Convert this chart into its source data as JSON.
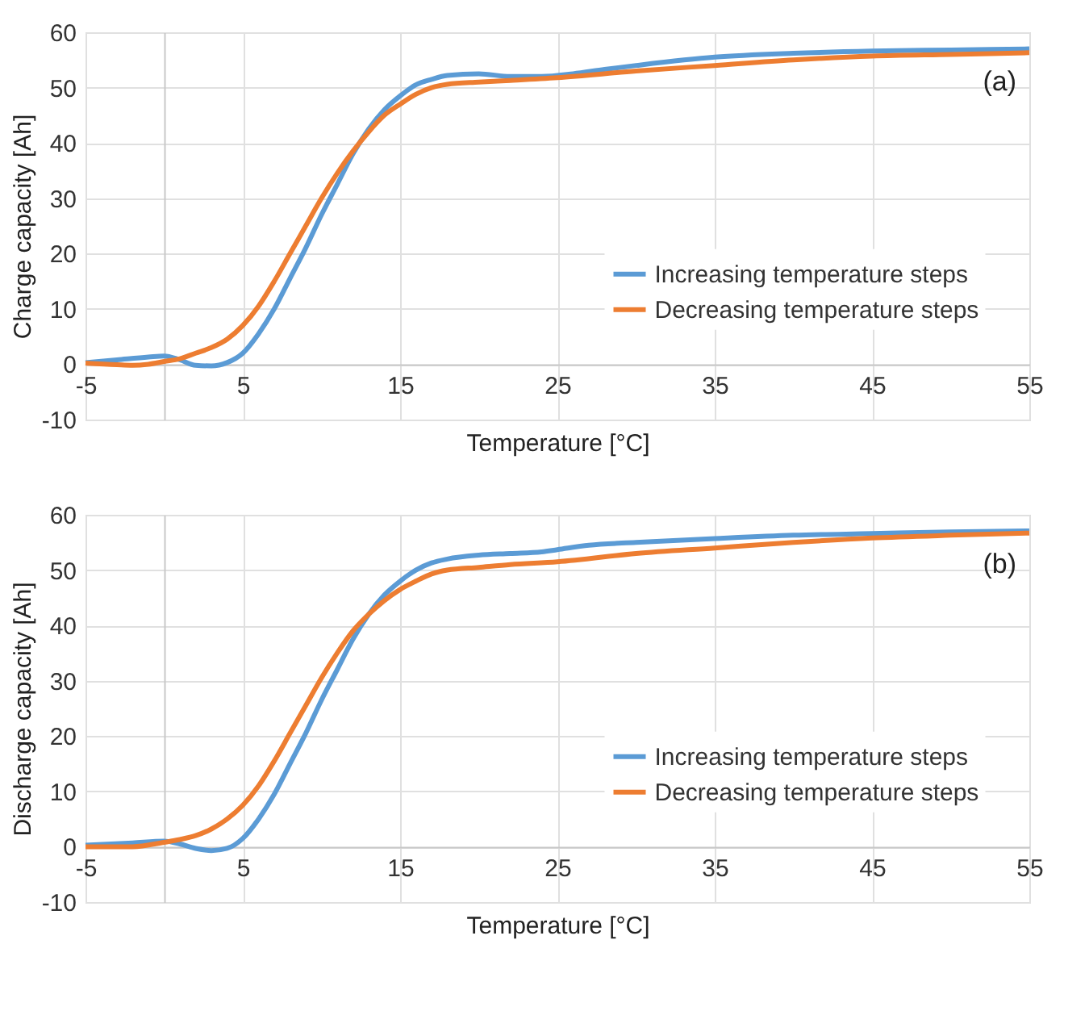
{
  "chart_data": [
    {
      "type": "line",
      "xlabel": "Temperature [°C]",
      "ylabel": "Charge capacity [Ah]",
      "annotations": [
        "(a)"
      ],
      "xlim": [
        -5,
        55
      ],
      "ylim": [
        -10,
        60
      ],
      "xticks": [
        -5,
        5,
        15,
        25,
        35,
        45,
        55
      ],
      "yticks": [
        -10,
        0,
        10,
        20,
        30,
        40,
        50,
        60
      ],
      "grid": true,
      "legend": "bottom right",
      "line_style": "solid",
      "marker": "none",
      "series": [
        {
          "name": "Increasing temperature steps",
          "color": "#5b9bd5",
          "x": [
            -5,
            -3,
            -1,
            0,
            1,
            2,
            3,
            4,
            5,
            6,
            7,
            8,
            9,
            10,
            11,
            12,
            13,
            14,
            15,
            16,
            17,
            18,
            20,
            22,
            24,
            26,
            28,
            30,
            35,
            40,
            45,
            50,
            55
          ],
          "values": [
            0.3,
            0.8,
            1.3,
            1.5,
            0.8,
            -0.2,
            -0.3,
            0.3,
            2,
            5.5,
            10,
            15.5,
            21,
            27,
            32.5,
            38,
            42.5,
            46,
            48.5,
            50.5,
            51.5,
            52.2,
            52.5,
            52,
            52,
            52.5,
            53.3,
            54,
            55.5,
            56.2,
            56.6,
            56.8,
            57
          ]
        },
        {
          "name": "Decreasing temperature steps",
          "color": "#ed7d31",
          "x": [
            -5,
            -3,
            -2,
            -1,
            0,
            1,
            2,
            3,
            4,
            5,
            6,
            7,
            8,
            9,
            10,
            11,
            12,
            13,
            14,
            15,
            16,
            17,
            18,
            20,
            22,
            25,
            30,
            35,
            40,
            45,
            50,
            55
          ],
          "values": [
            0.2,
            -0.1,
            -0.2,
            0,
            0.5,
            1,
            2,
            3,
            4.5,
            7,
            10.5,
            15,
            20,
            25,
            30,
            34.5,
            38.5,
            42,
            45,
            47,
            48.8,
            50,
            50.6,
            51,
            51.3,
            51.8,
            53,
            54,
            55,
            55.7,
            56,
            56.3
          ]
        }
      ]
    },
    {
      "type": "line",
      "xlabel": "Temperature [°C]",
      "ylabel": "Discharge capacity [Ah]",
      "annotations": [
        "(b)"
      ],
      "xlim": [
        -5,
        55
      ],
      "ylim": [
        -10,
        60
      ],
      "xticks": [
        -5,
        5,
        15,
        25,
        35,
        45,
        55
      ],
      "yticks": [
        -10,
        0,
        10,
        20,
        30,
        40,
        50,
        60
      ],
      "grid": true,
      "legend": "bottom right",
      "line_style": "solid",
      "marker": "none",
      "series": [
        {
          "name": "Increasing temperature steps",
          "color": "#5b9bd5",
          "x": [
            -5,
            -2,
            0,
            1,
            2,
            3,
            4,
            5,
            6,
            7,
            8,
            9,
            10,
            11,
            12,
            13,
            14,
            15,
            16,
            17,
            18,
            20,
            22,
            24,
            25,
            27,
            30,
            35,
            40,
            45,
            50,
            55
          ],
          "values": [
            0.3,
            0.7,
            1,
            0.5,
            -0.3,
            -0.7,
            -0.3,
            1.5,
            5,
            9.5,
            15,
            20.5,
            26.5,
            32,
            37.5,
            42,
            45.5,
            48,
            50,
            51.3,
            52,
            52.7,
            53,
            53.3,
            53.7,
            54.5,
            55,
            55.7,
            56.3,
            56.6,
            56.9,
            57.1
          ]
        },
        {
          "name": "Decreasing temperature steps",
          "color": "#ed7d31",
          "x": [
            -5,
            -2,
            0,
            1,
            2,
            3,
            4,
            5,
            6,
            7,
            8,
            9,
            10,
            11,
            12,
            13,
            14,
            15,
            16,
            17,
            18,
            20,
            22,
            25,
            30,
            35,
            40,
            45,
            50,
            55
          ],
          "values": [
            0,
            0,
            0.8,
            1.3,
            2,
            3.2,
            5,
            7.5,
            11,
            15.5,
            20.5,
            25.5,
            30.5,
            35,
            39,
            42,
            44.5,
            46.5,
            48,
            49.3,
            50,
            50.5,
            51,
            51.5,
            53,
            54,
            55,
            55.8,
            56.3,
            56.7
          ]
        }
      ]
    }
  ]
}
